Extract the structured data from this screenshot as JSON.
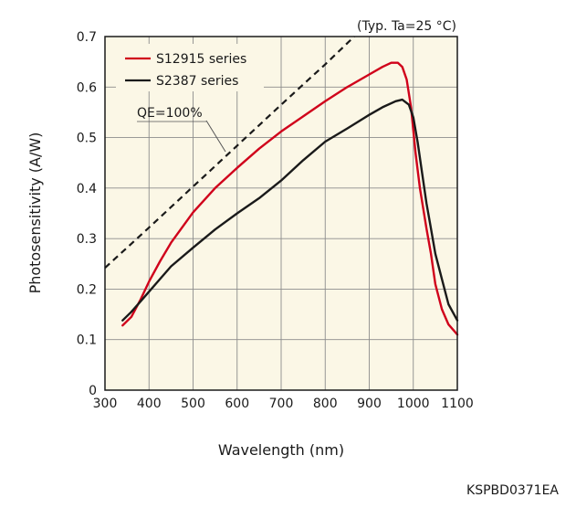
{
  "chart_data": {
    "type": "line",
    "note": "(Typ. Ta=25 °C)",
    "xlabel": "Wavelength (nm)",
    "ylabel": "Photosensitivity (A/W)",
    "xlim": [
      300,
      1100
    ],
    "ylim": [
      0,
      0.7
    ],
    "xticks": [
      "300",
      "400",
      "500",
      "600",
      "700",
      "800",
      "900",
      "1000",
      "1100"
    ],
    "yticks": [
      "0",
      "0.1",
      "0.2",
      "0.3",
      "0.4",
      "0.5",
      "0.6",
      "0.7"
    ],
    "grid": true,
    "legend_position": "top-left",
    "code": "KSPBD0371EA",
    "series": [
      {
        "name": "S12915 series",
        "color": "#d0021b",
        "style": "solid",
        "points": [
          [
            340,
            0.128
          ],
          [
            360,
            0.145
          ],
          [
            380,
            0.178
          ],
          [
            400,
            0.215
          ],
          [
            425,
            0.255
          ],
          [
            450,
            0.292
          ],
          [
            500,
            0.352
          ],
          [
            550,
            0.4
          ],
          [
            600,
            0.44
          ],
          [
            650,
            0.478
          ],
          [
            700,
            0.512
          ],
          [
            750,
            0.542
          ],
          [
            800,
            0.572
          ],
          [
            850,
            0.6
          ],
          [
            900,
            0.625
          ],
          [
            930,
            0.64
          ],
          [
            950,
            0.648
          ],
          [
            965,
            0.648
          ],
          [
            975,
            0.64
          ],
          [
            985,
            0.615
          ],
          [
            995,
            0.56
          ],
          [
            1005,
            0.47
          ],
          [
            1015,
            0.4
          ],
          [
            1030,
            0.32
          ],
          [
            1040,
            0.27
          ],
          [
            1050,
            0.21
          ],
          [
            1065,
            0.16
          ],
          [
            1080,
            0.13
          ],
          [
            1100,
            0.11
          ]
        ]
      },
      {
        "name": "S2387 series",
        "color": "#1a1a1a",
        "style": "solid",
        "points": [
          [
            340,
            0.138
          ],
          [
            360,
            0.155
          ],
          [
            380,
            0.175
          ],
          [
            400,
            0.195
          ],
          [
            425,
            0.22
          ],
          [
            450,
            0.245
          ],
          [
            500,
            0.282
          ],
          [
            550,
            0.318
          ],
          [
            600,
            0.35
          ],
          [
            650,
            0.38
          ],
          [
            700,
            0.415
          ],
          [
            750,
            0.455
          ],
          [
            800,
            0.492
          ],
          [
            850,
            0.518
          ],
          [
            900,
            0.545
          ],
          [
            930,
            0.56
          ],
          [
            960,
            0.572
          ],
          [
            975,
            0.575
          ],
          [
            990,
            0.565
          ],
          [
            1000,
            0.54
          ],
          [
            1010,
            0.49
          ],
          [
            1020,
            0.43
          ],
          [
            1030,
            0.37
          ],
          [
            1040,
            0.32
          ],
          [
            1050,
            0.27
          ],
          [
            1065,
            0.22
          ],
          [
            1080,
            0.17
          ],
          [
            1100,
            0.138
          ]
        ]
      },
      {
        "name": "QE=100%",
        "color": "#1a1a1a",
        "style": "dashed",
        "points": [
          [
            300,
            0.242
          ],
          [
            400,
            0.322
          ],
          [
            500,
            0.403
          ],
          [
            600,
            0.484
          ],
          [
            700,
            0.565
          ],
          [
            800,
            0.645
          ],
          [
            866,
            0.7
          ]
        ]
      }
    ]
  }
}
